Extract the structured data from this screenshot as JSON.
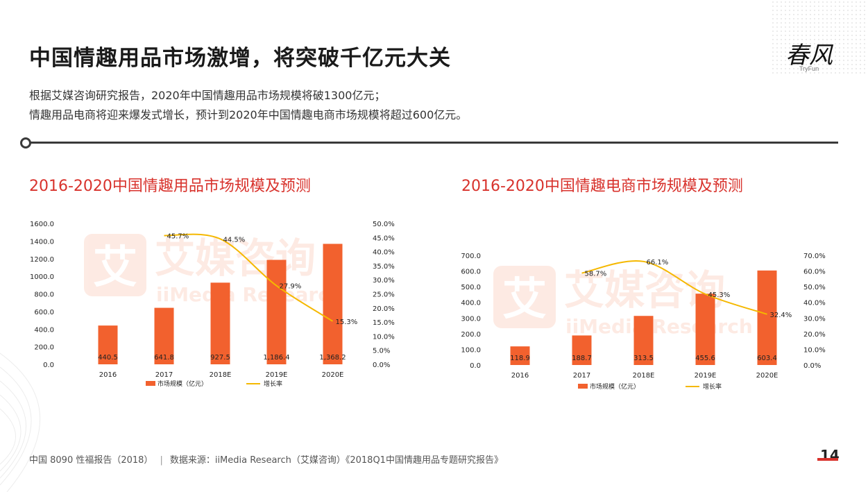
{
  "page": {
    "title": "中国情趣用品市场激增，将突破千亿元大关",
    "description_lines": [
      "根据艾媒咨询研究报告，2020年中国情趣用品市场规模将破1300亿元；",
      "情趣用品电商将迎来爆发式增长，预计到2020年中国情趣电商市场规模将超过600亿元。"
    ],
    "logo": {
      "main": "春风",
      "sub": "TryFun"
    },
    "footer": {
      "left": "中国 8090 性福报告（2018）",
      "separator": "|",
      "source": "数据来源：iiMedia Research（艾媒咨询）《2018Q1中国情趣用品专题研究报告》"
    },
    "page_number": "14",
    "watermark": {
      "cn": "艾媒咨询",
      "en": "iiMedia Research",
      "mark": "艾"
    }
  },
  "colors": {
    "bar": "#f2612e",
    "line": "#f5b800",
    "title_red": "#d8322c",
    "text": "#222222"
  },
  "chart_data": [
    {
      "type": "bar",
      "title": "2016-2020中国情趣用品市场规模及预测",
      "categories": [
        "2016",
        "2017",
        "2018E",
        "2019E",
        "2020E"
      ],
      "series": [
        {
          "name": "市场规模（亿元）",
          "type": "bar",
          "axis": "left",
          "values": [
            440.5,
            641.8,
            927.5,
            1186.4,
            1368.2
          ],
          "labels": [
            "440.5",
            "641.8",
            "927.5",
            "1,186.4",
            "1,368.2"
          ]
        },
        {
          "name": "增长率",
          "type": "line",
          "axis": "right",
          "values": [
            null,
            45.7,
            44.5,
            27.9,
            15.3
          ],
          "labels": [
            "",
            "45.7%",
            "44.5%",
            "27.9%",
            "15.3%"
          ]
        }
      ],
      "ylim": [
        0,
        1600
      ],
      "y_ticks": [
        "0.0",
        "200.0",
        "400.0",
        "600.0",
        "800.0",
        "1000.0",
        "1200.0",
        "1400.0",
        "1600.0"
      ],
      "y2lim": [
        0,
        50
      ],
      "y2_ticks": [
        "0.0%",
        "5.0%",
        "10.0%",
        "15.0%",
        "20.0%",
        "25.0%",
        "30.0%",
        "35.0%",
        "40.0%",
        "45.0%",
        "50.0%"
      ],
      "legend": "bottom"
    },
    {
      "type": "bar",
      "title": "2016-2020中国情趣电商市场规模及预测",
      "categories": [
        "2016",
        "2017",
        "2018E",
        "2019E",
        "2020E"
      ],
      "series": [
        {
          "name": "市场规模（亿元）",
          "type": "bar",
          "axis": "left",
          "values": [
            118.9,
            188.7,
            313.5,
            455.6,
            603.4
          ],
          "labels": [
            "118.9",
            "188.7",
            "313.5",
            "455.6",
            "603.4"
          ]
        },
        {
          "name": "增长率",
          "type": "line",
          "axis": "right",
          "values": [
            null,
            58.7,
            66.1,
            45.3,
            32.4
          ],
          "labels": [
            "",
            "58.7%",
            "66.1%",
            "45.3%",
            "32.4%"
          ]
        }
      ],
      "ylim": [
        0,
        700
      ],
      "y_ticks": [
        "0.0",
        "100.0",
        "200.0",
        "300.0",
        "400.0",
        "500.0",
        "600.0",
        "700.0"
      ],
      "y2lim": [
        0,
        70
      ],
      "y2_ticks": [
        "0.0%",
        "10.0%",
        "20.0%",
        "30.0%",
        "40.0%",
        "50.0%",
        "60.0%",
        "70.0%"
      ],
      "legend": "bottom"
    }
  ]
}
